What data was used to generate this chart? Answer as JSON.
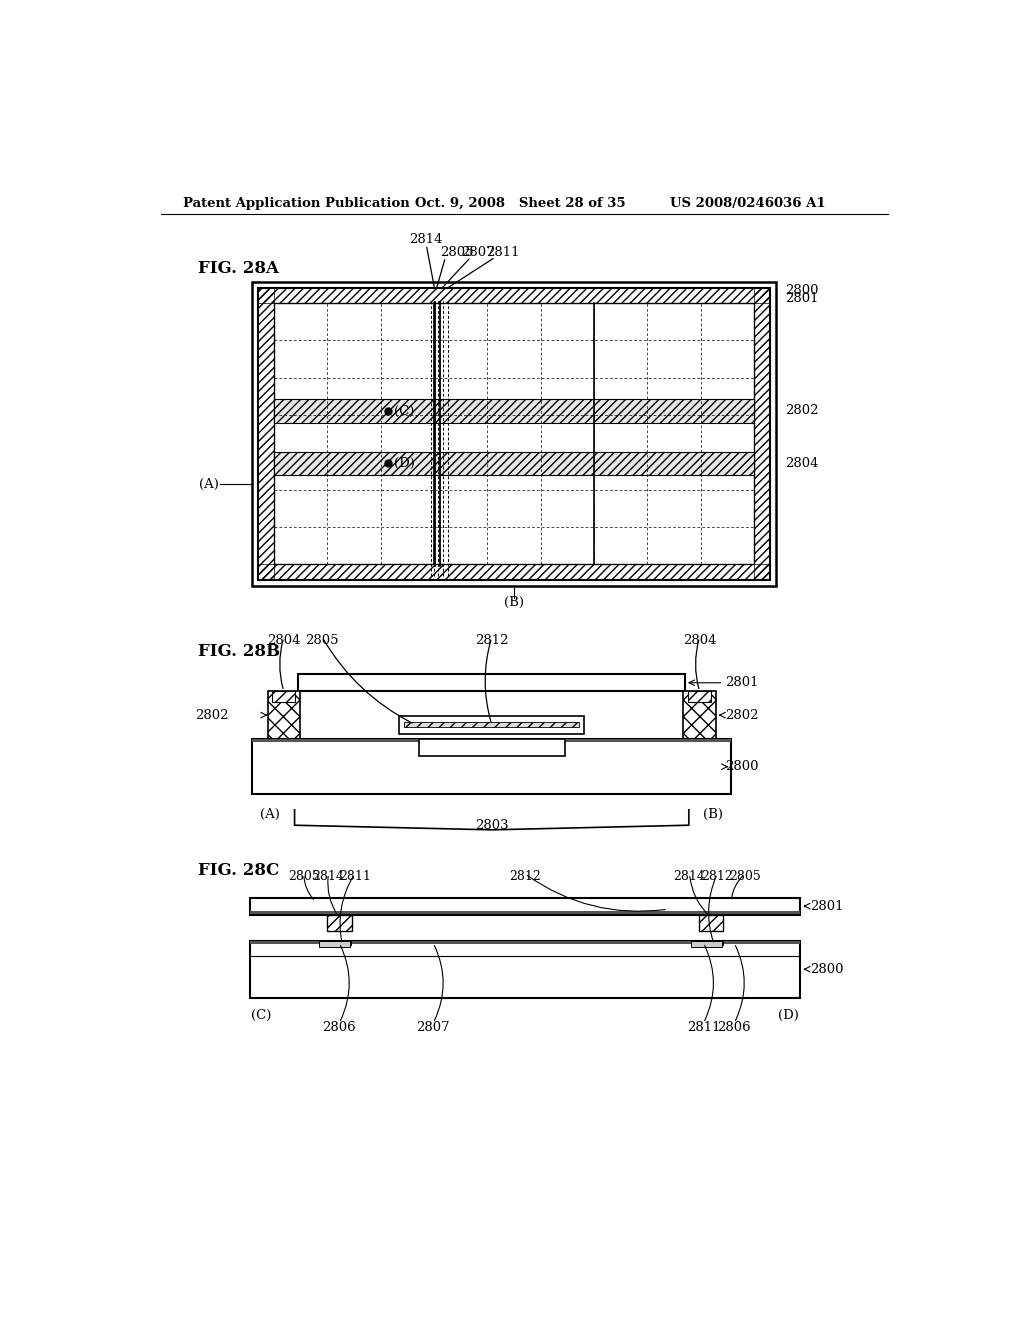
{
  "header_left": "Patent Application Publication",
  "header_mid": "Oct. 9, 2008   Sheet 28 of 35",
  "header_right": "US 2008/0246036 A1",
  "fig28a_label": "FIG. 28A",
  "fig28b_label": "FIG. 28B",
  "fig28c_label": "FIG. 28C",
  "bg_color": "#ffffff",
  "line_color": "#000000"
}
